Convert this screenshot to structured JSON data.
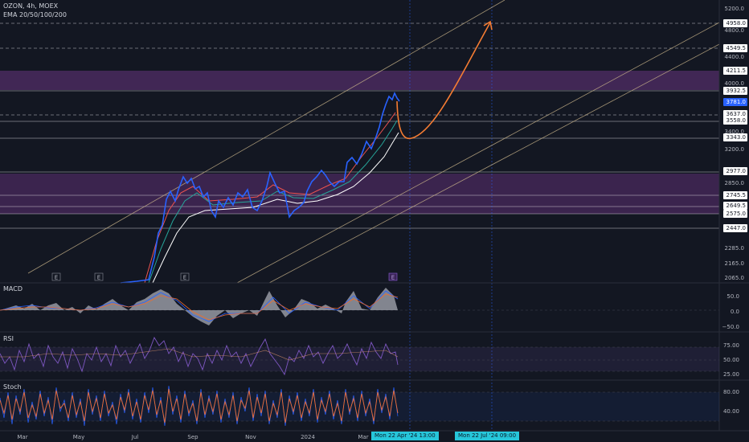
{
  "header": {
    "symbol": "OZON, 4h, MOEX",
    "indicator": "EMA 20/50/100/200"
  },
  "panes": {
    "macd": "MACD",
    "rsi": "RSI",
    "stoch": "Stoch"
  },
  "price_axis": {
    "ticks": [
      "5200.0",
      "4800.0",
      "4400.0",
      "4000.0",
      "3400.0",
      "3200.0",
      "2850.0",
      "2285.0",
      "2165.0",
      "2065.0"
    ],
    "labels": [
      {
        "text": "4958.0",
        "last": false
      },
      {
        "text": "4549.5",
        "last": false
      },
      {
        "text": "4211.5",
        "last": false
      },
      {
        "text": "3932.5",
        "last": false
      },
      {
        "text": "3781.0",
        "last": true
      },
      {
        "text": "3637.0",
        "last": false
      },
      {
        "text": "3558.0",
        "last": false
      },
      {
        "text": "3343.0",
        "last": false
      },
      {
        "text": "2977.0",
        "last": false
      },
      {
        "text": "2745.5",
        "last": false
      },
      {
        "text": "2649.5",
        "last": false
      },
      {
        "text": "2575.0",
        "last": false
      },
      {
        "text": "2447.0",
        "last": false
      }
    ]
  },
  "macd_axis": [
    "50.0",
    "0.0",
    "−50.0"
  ],
  "rsi_axis": [
    "75.00",
    "50.00",
    "25.00"
  ],
  "stoch_axis": [
    "80.00",
    "40.00"
  ],
  "time_axis": [
    "Mar",
    "May",
    "Jul",
    "Sep",
    "Nov",
    "2024",
    "Mar"
  ],
  "date_tags": [
    "Mon 22 Apr '24   13:00",
    "Mon 22 Jul '24   09:00"
  ],
  "earnings_marker": "E",
  "colors": {
    "background": "#131722",
    "price": "#2962ff",
    "zone": "#4a2a5e",
    "channel": "#c9b48a",
    "projection": "#f57c33",
    "macd": "#b2b5be",
    "rsi": "#7e57c2",
    "stoch": "#ef6c2e",
    "highlight": "#2962ff"
  }
}
